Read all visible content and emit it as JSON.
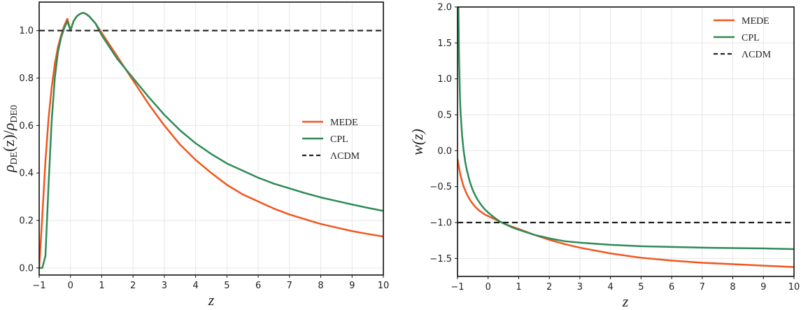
{
  "chart_data": [
    {
      "type": "line",
      "title": "",
      "xlabel": "z",
      "ylabel": "ρDE(z)/ρDE0",
      "ylabel_parts": {
        "rho1": "ρ",
        "sub1": "DE",
        "mid": "(z)/",
        "rho2": "ρ",
        "sub2": "DE0"
      },
      "xlim": [
        -1,
        10
      ],
      "ylim": [
        -0.03,
        1.12
      ],
      "xticks": [
        -1,
        0,
        1,
        2,
        3,
        4,
        5,
        6,
        7,
        8,
        9,
        10
      ],
      "xtick_labels": [
        "−1",
        "0",
        "1",
        "2",
        "3",
        "4",
        "5",
        "6",
        "7",
        "8",
        "9",
        "10"
      ],
      "yticks": [
        0.0,
        0.2,
        0.4,
        0.6,
        0.8,
        1.0
      ],
      "ytick_labels": [
        "0.0",
        "0.2",
        "0.4",
        "0.6",
        "0.8",
        "1.0"
      ],
      "legend": {
        "placement": "center-right",
        "entries": [
          "MEDE",
          "CPL",
          "ΛCDM"
        ]
      },
      "grid": true,
      "series": [
        {
          "name": "MEDE",
          "color": "#f2561d",
          "style": "solid",
          "x": [
            -1,
            -0.9,
            -0.8,
            -0.7,
            -0.6,
            -0.5,
            -0.4,
            -0.3,
            -0.2,
            -0.1,
            0,
            0.1,
            0.2,
            0.3,
            0.4,
            0.5,
            0.6,
            0.8,
            1,
            1.2,
            1.5,
            2,
            2.5,
            3,
            3.5,
            4,
            4.5,
            5,
            5.5,
            6,
            6.5,
            7,
            7.5,
            8,
            8.5,
            9,
            9.5,
            10
          ],
          "y": [
            0.0,
            0.22,
            0.45,
            0.63,
            0.76,
            0.86,
            0.93,
            0.98,
            1.02,
            1.05,
            1.0,
            1.04,
            1.06,
            1.07,
            1.075,
            1.07,
            1.06,
            1.03,
            0.99,
            0.95,
            0.89,
            0.79,
            0.69,
            0.6,
            0.52,
            0.455,
            0.4,
            0.35,
            0.31,
            0.28,
            0.25,
            0.225,
            0.205,
            0.185,
            0.17,
            0.155,
            0.143,
            0.132
          ]
        },
        {
          "name": "CPL",
          "color": "#2e8b57",
          "style": "solid",
          "x": [
            -1,
            -0.9,
            -0.8,
            -0.7,
            -0.6,
            -0.5,
            -0.4,
            -0.3,
            -0.2,
            -0.1,
            0,
            0.1,
            0.2,
            0.3,
            0.4,
            0.5,
            0.6,
            0.8,
            1,
            1.2,
            1.5,
            2,
            2.5,
            3,
            3.5,
            4,
            4.5,
            5,
            5.5,
            6,
            6.5,
            7,
            7.5,
            8,
            8.5,
            9,
            9.5,
            10
          ],
          "y": [
            0.0,
            0.0,
            0.05,
            0.35,
            0.62,
            0.8,
            0.91,
            0.97,
            1.01,
            1.04,
            1.0,
            1.04,
            1.06,
            1.07,
            1.075,
            1.07,
            1.06,
            1.03,
            0.98,
            0.94,
            0.88,
            0.8,
            0.72,
            0.645,
            0.58,
            0.525,
            0.48,
            0.44,
            0.41,
            0.38,
            0.355,
            0.335,
            0.315,
            0.297,
            0.282,
            0.267,
            0.253,
            0.24
          ]
        },
        {
          "name": "ΛCDM",
          "color": "#222222",
          "style": "dashed",
          "x": [
            -1,
            10
          ],
          "y": [
            1.0,
            1.0
          ]
        }
      ]
    },
    {
      "type": "line",
      "title": "",
      "xlabel": "z",
      "ylabel": "w(z)",
      "xlim": [
        -1,
        10
      ],
      "ylim": [
        -1.75,
        2.0
      ],
      "xticks": [
        -1,
        0,
        1,
        2,
        3,
        4,
        5,
        6,
        7,
        8,
        9,
        10
      ],
      "xtick_labels": [
        "−1",
        "0",
        "1",
        "2",
        "3",
        "4",
        "5",
        "6",
        "7",
        "8",
        "9",
        "10"
      ],
      "yticks": [
        -1.5,
        -1.0,
        -0.5,
        0.0,
        0.5,
        1.0,
        1.5,
        2.0
      ],
      "ytick_labels": [
        "−1.5",
        "−1.0",
        "−0.5",
        "0.0",
        "0.5",
        "1.0",
        "1.5",
        "2.0"
      ],
      "legend": {
        "placement": "top-right",
        "entries": [
          "MEDE",
          "CPL",
          "ΛCDM"
        ]
      },
      "grid": true,
      "series": [
        {
          "name": "MEDE",
          "color": "#f2561d",
          "style": "solid",
          "x": [
            -1,
            -0.9,
            -0.8,
            -0.7,
            -0.6,
            -0.5,
            -0.4,
            -0.3,
            -0.2,
            -0.1,
            0,
            0.2,
            0.4,
            0.6,
            0.8,
            1,
            1.5,
            2,
            2.5,
            3,
            4,
            5,
            6,
            7,
            8,
            9,
            10
          ],
          "y": [
            -0.12,
            -0.35,
            -0.5,
            -0.6,
            -0.68,
            -0.74,
            -0.79,
            -0.83,
            -0.86,
            -0.89,
            -0.91,
            -0.95,
            -0.99,
            -1.03,
            -1.06,
            -1.09,
            -1.17,
            -1.24,
            -1.3,
            -1.35,
            -1.43,
            -1.49,
            -1.53,
            -1.56,
            -1.58,
            -1.6,
            -1.62
          ]
        },
        {
          "name": "CPL",
          "color": "#2e8b57",
          "style": "solid",
          "x": [
            -0.97,
            -0.95,
            -0.92,
            -0.9,
            -0.85,
            -0.8,
            -0.75,
            -0.7,
            -0.6,
            -0.5,
            -0.4,
            -0.3,
            -0.2,
            -0.1,
            0,
            0.2,
            0.4,
            0.6,
            0.8,
            1,
            1.5,
            2,
            2.5,
            3,
            4,
            5,
            6,
            7,
            8,
            9,
            10
          ],
          "y": [
            2.0,
            1.3,
            0.75,
            0.53,
            0.21,
            0.0,
            -0.15,
            -0.26,
            -0.43,
            -0.55,
            -0.64,
            -0.71,
            -0.77,
            -0.82,
            -0.86,
            -0.93,
            -0.99,
            -1.03,
            -1.07,
            -1.1,
            -1.17,
            -1.22,
            -1.26,
            -1.28,
            -1.31,
            -1.33,
            -1.34,
            -1.35,
            -1.355,
            -1.36,
            -1.37
          ]
        },
        {
          "name": "ΛCDM",
          "color": "#222222",
          "style": "dashed",
          "x": [
            -1,
            10
          ],
          "y": [
            -1.0,
            -1.0
          ]
        }
      ]
    }
  ]
}
